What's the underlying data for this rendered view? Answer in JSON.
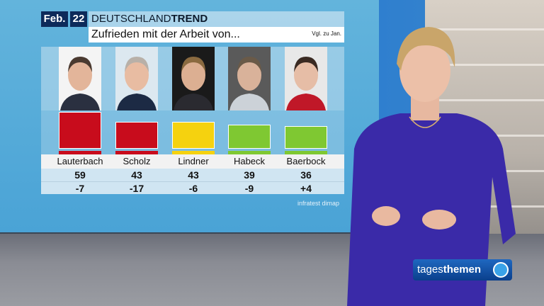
{
  "graphic": {
    "month": "Feb.",
    "year": "22",
    "brand_light": "DEUTSCHLAND",
    "brand_bold": "TREND",
    "question": "Zufrieden mit der Arbeit von...",
    "comparison_note": "Vgl. zu Jan.",
    "source": "infratest dimap"
  },
  "chart_data": {
    "type": "bar",
    "title": "Zufrieden mit der Arbeit von...",
    "categories": [
      "Lauterbach",
      "Scholz",
      "Lindner",
      "Habeck",
      "Baerbock"
    ],
    "values": [
      59,
      43,
      43,
      39,
      36
    ],
    "changes": [
      "-7",
      "-17",
      "-6",
      "-9",
      "+4"
    ],
    "colors": [
      "#c80c1c",
      "#c80c1c",
      "#f5d20f",
      "#7fc832",
      "#7fc832"
    ],
    "unit": "%",
    "ylim": [
      0,
      100
    ]
  },
  "logo": {
    "light": "tages",
    "bold": "themen"
  }
}
